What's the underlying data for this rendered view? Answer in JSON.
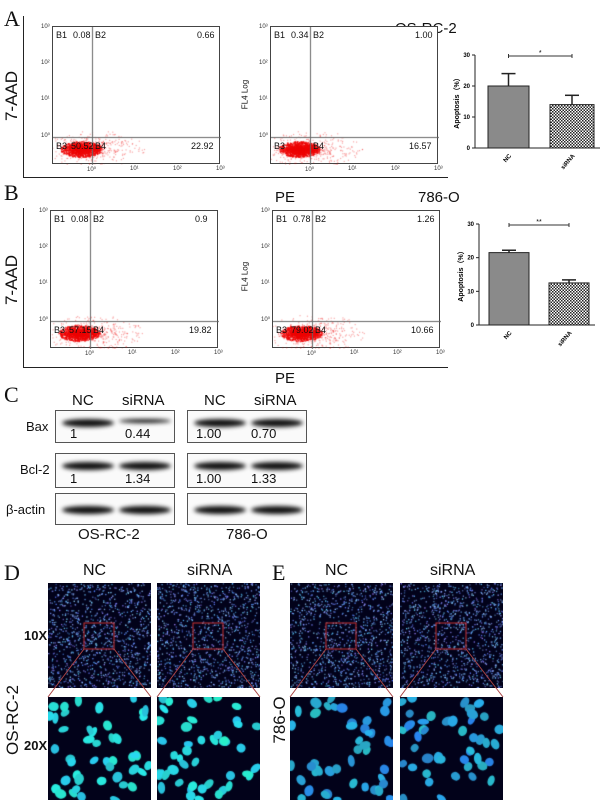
{
  "panels": {
    "A": "A",
    "B": "B",
    "C": "C",
    "D": "D",
    "E": "E"
  },
  "cell_lines": {
    "os": "OS-RC-2",
    "r786": "786-O"
  },
  "flow": {
    "y_label": "7-AAD",
    "y_label2": "FL4 Log",
    "x_label": "PE",
    "ticks": [
      "10⁰",
      "10¹",
      "10²",
      "10³"
    ],
    "quadrant_names": [
      "B1",
      "B2",
      "B3",
      "B4"
    ],
    "plots": [
      {
        "B1": "0.08",
        "B2": "0.66",
        "B3": "50.52",
        "B4": "22.92"
      },
      {
        "B1": "0.34",
        "B2": "1.00",
        "B3": "",
        "B4": "16.57"
      },
      {
        "B1": "0.08",
        "B2": "0.9",
        "B3": "57.15",
        "B4": "19.82"
      },
      {
        "B1": "0.78",
        "B2": "1.26",
        "B3": "79.02",
        "B4": "10.66"
      }
    ]
  },
  "chart_data": [
    {
      "type": "bar",
      "categories": [
        "NC",
        "siRNA"
      ],
      "values": [
        20,
        14
      ],
      "errors": [
        4,
        3
      ],
      "ylabel": "Apoptosis（%）",
      "ylim": [
        0,
        30
      ],
      "yticks": [
        "0",
        "10",
        "20",
        "30"
      ],
      "significance": "*",
      "patterns": [
        "solid gray",
        "checkered"
      ]
    },
    {
      "type": "bar",
      "categories": [
        "NC",
        "siRNA"
      ],
      "values": [
        21.5,
        12.5
      ],
      "errors": [
        0.7,
        0.9
      ],
      "ylabel": "Apoptosis（%）",
      "ylim": [
        0,
        30
      ],
      "yticks": [
        "0",
        "10",
        "20",
        "30"
      ],
      "significance": "**",
      "patterns": [
        "solid gray",
        "checkered"
      ]
    }
  ],
  "western": {
    "lanes": [
      "NC",
      "siRNA"
    ],
    "rows": [
      "Bax",
      "Bcl-2",
      "β-actin"
    ],
    "os": {
      "Bax": [
        "1",
        "0.44"
      ],
      "Bcl-2": [
        "1",
        "1.34"
      ]
    },
    "r786": {
      "Bax": [
        "1.00",
        "0.70"
      ],
      "Bcl-2": [
        "1.00",
        "1.33"
      ]
    }
  },
  "microscopy": {
    "cols": [
      "NC",
      "siRNA"
    ],
    "mags": [
      "10X",
      "20X"
    ]
  }
}
